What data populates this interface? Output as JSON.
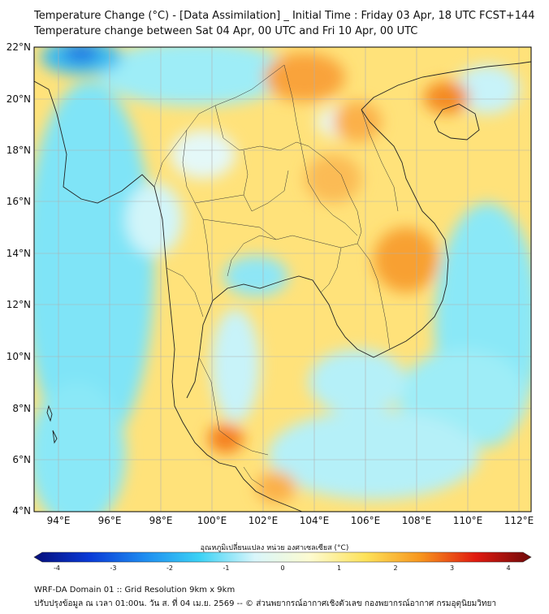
{
  "title_line1": "Temperature Change (°C) - [Data Assimilation] _ Initial Time : Friday 03 Apr, 18 UTC FCST+144",
  "title_line2": "Temperature change between Sat 04 Apr, 00 UTC and Fri 10 Apr, 00 UTC",
  "map": {
    "lon_range": [
      93,
      112.5
    ],
    "lat_range": [
      4,
      22.2
    ],
    "lon_ticks": [
      "94°E",
      "96°E",
      "98°E",
      "100°E",
      "102°E",
      "104°E",
      "106°E",
      "108°E",
      "110°E",
      "112°E"
    ],
    "lat_ticks": [
      "22°N",
      "20°N",
      "18°N",
      "16°N",
      "14°N",
      "12°N",
      "10°N",
      "8°N",
      "6°N",
      "4°N"
    ],
    "grid": true,
    "background_color": "#ffe27a",
    "sea_color": "#7fe4f7"
  },
  "colorbar": {
    "title": "อุณหภูมิเปลี่ยนแปลง หน่วย องศาเซลเซียส (°C)",
    "ticks": [
      "-4",
      "-3",
      "-2",
      "-1",
      "0",
      "1",
      "2",
      "3",
      "4"
    ],
    "range": [
      -4,
      4
    ],
    "color_stops": [
      "#060e7a",
      "#0a3ad6",
      "#1e8cf0",
      "#3cd2f5",
      "#d9f6fb",
      "#fdfbd0",
      "#fde25a",
      "#f7951e",
      "#e01a10",
      "#6e0a0a"
    ]
  },
  "footer_line1": "WRF-DA Domain 01 :: Grid Resolution 9km x 9km",
  "footer_line2": "ปรับปรุงข้อมูล ณ เวลา 01:00น. วัน ส. ที่ 04 เม.ย. 2569 -- © ส่วนพยากรณ์อากาศเชิงตัวเลข กองพยากรณ์อากาศ กรมอุตุนิยมวิทยา"
}
